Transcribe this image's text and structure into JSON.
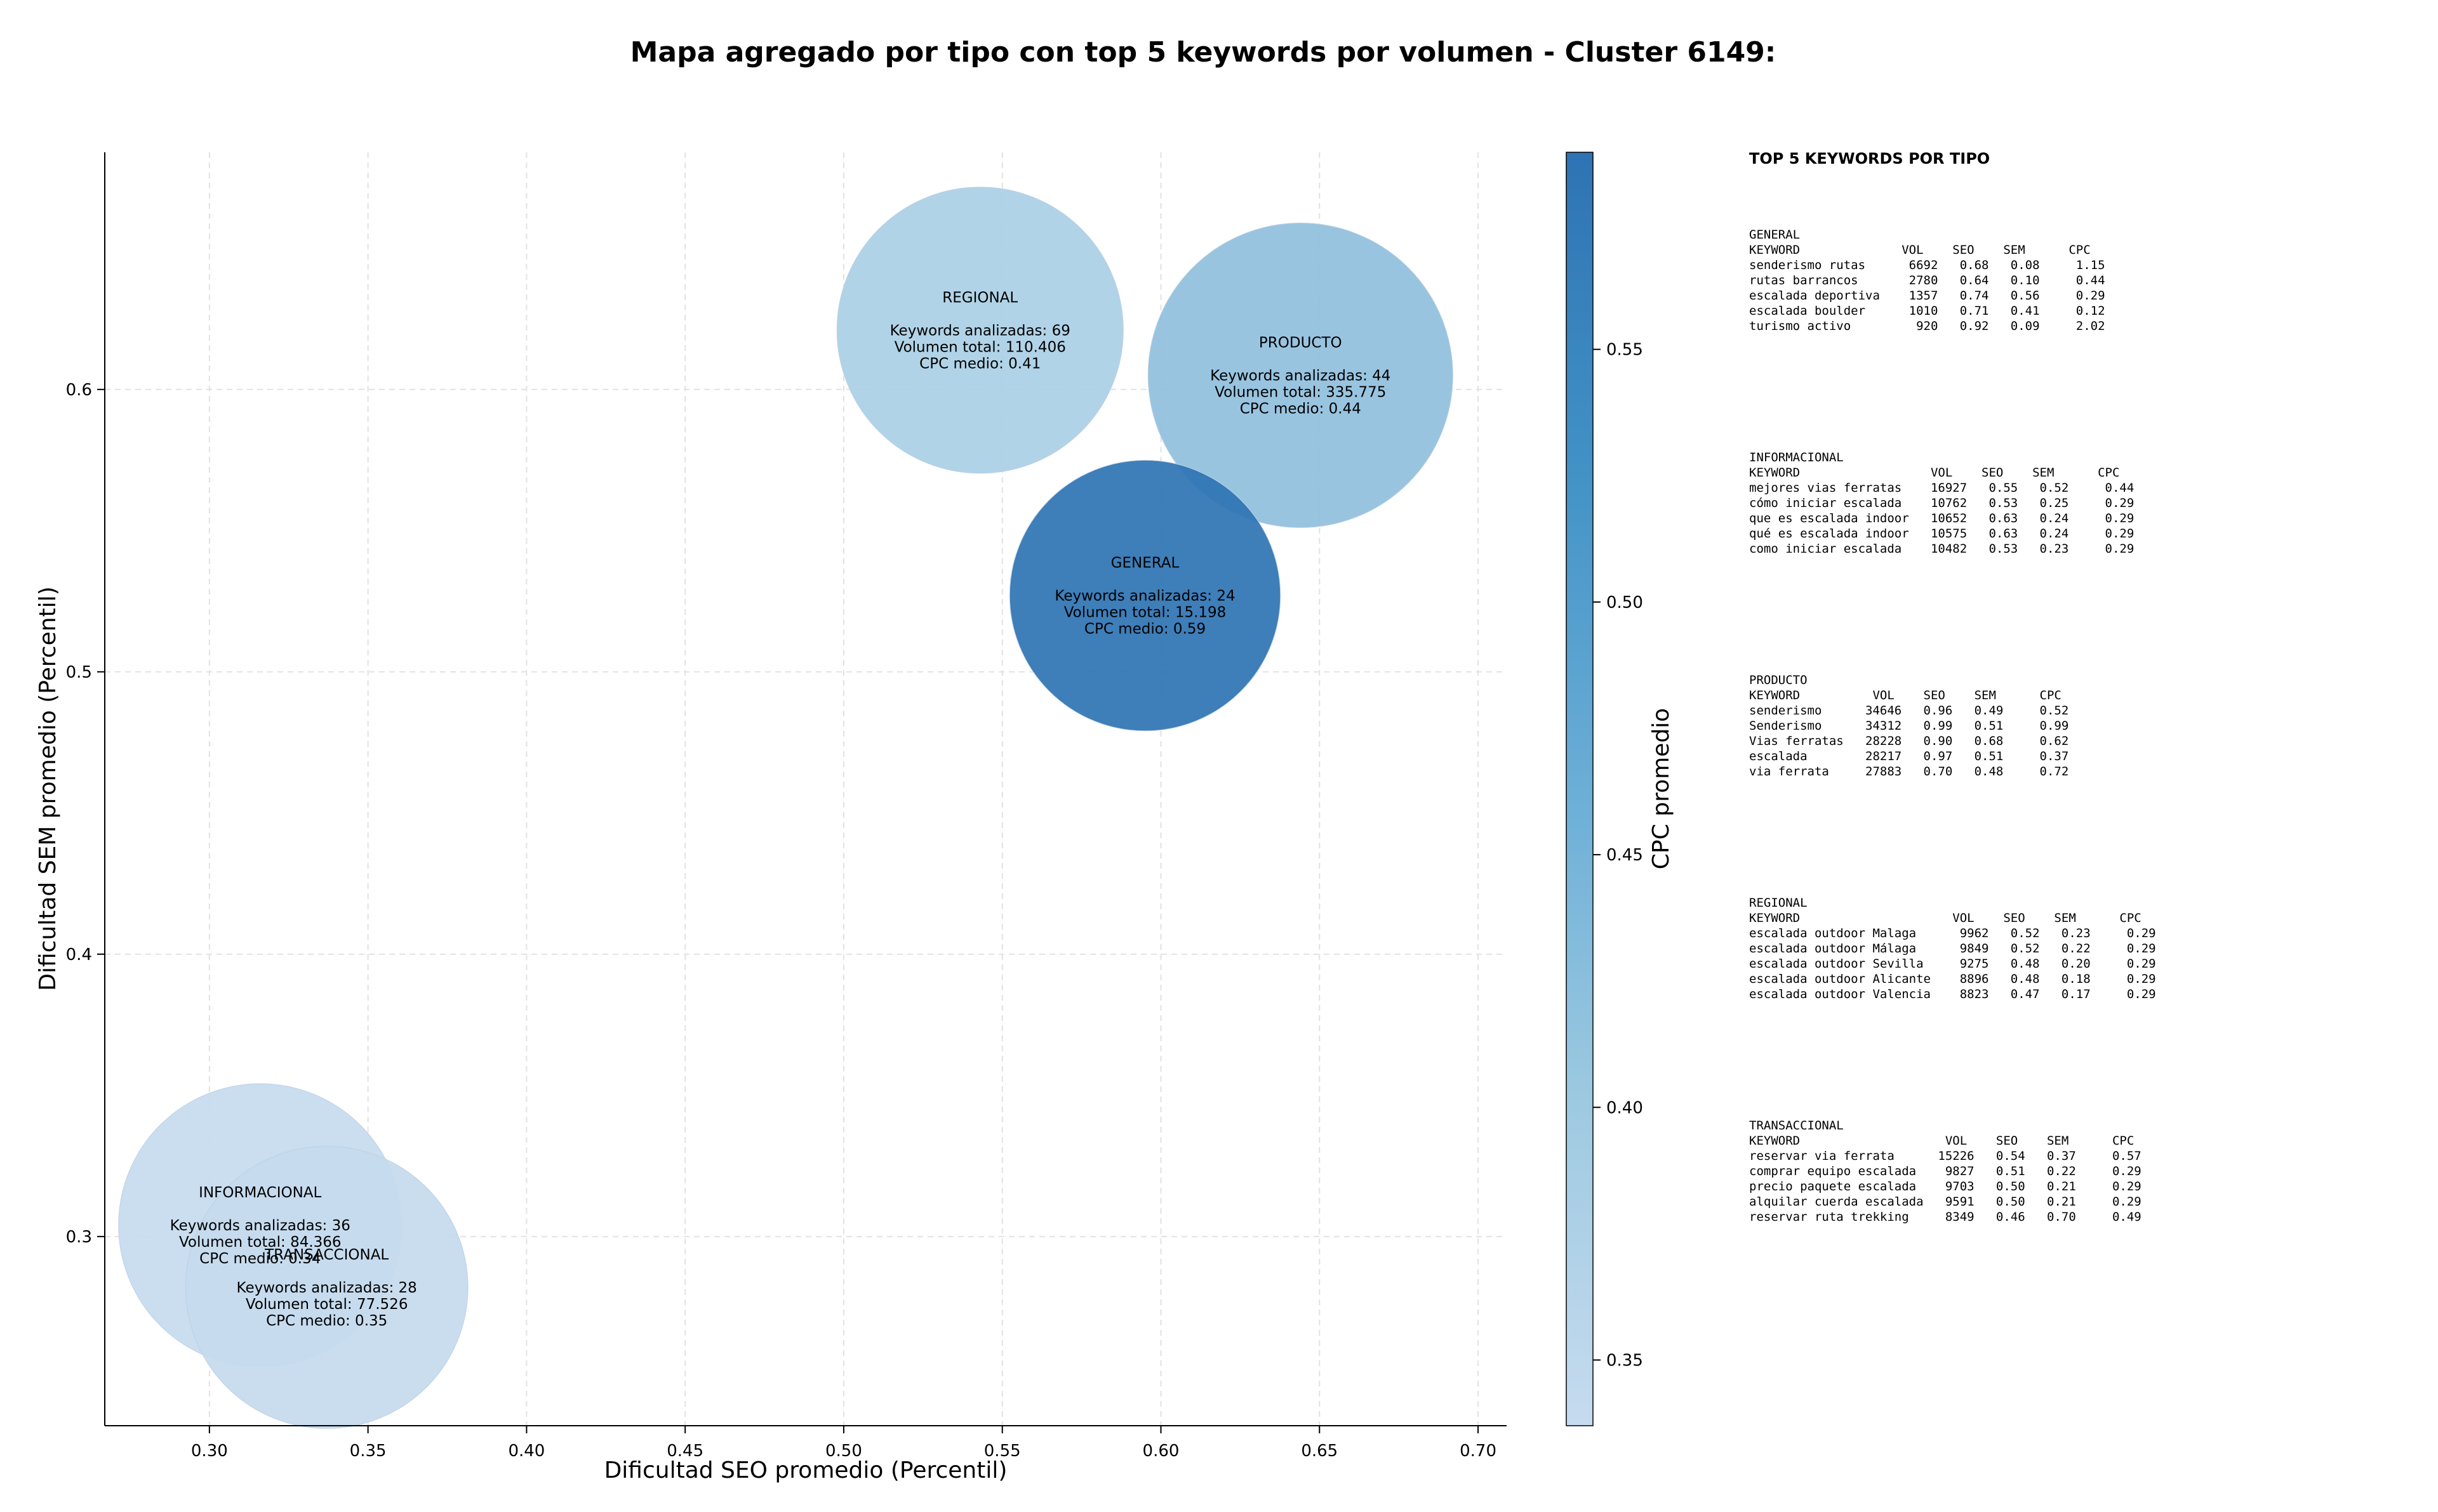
{
  "chart_data": {
    "type": "scatter",
    "title": "Mapa agregado por tipo con top 5 keywords por volumen - Cluster 6149:",
    "xlabel": "Dificultad SEO promedio (Percentil)",
    "ylabel": "Dificultad SEM promedio (Percentil)",
    "xlim": [
      0.267,
      0.709
    ],
    "ylim": [
      0.233,
      0.684
    ],
    "xticks": [
      0.3,
      0.35,
      0.4,
      0.45,
      0.5,
      0.55,
      0.6,
      0.65,
      0.7
    ],
    "xtick_labels": [
      "0.30",
      "0.35",
      "0.40",
      "0.45",
      "0.50",
      "0.55",
      "0.60",
      "0.65",
      "0.70"
    ],
    "yticks": [
      0.3,
      0.4,
      0.5,
      0.6
    ],
    "ytick_labels": [
      "0.3",
      "0.4",
      "0.5",
      "0.6"
    ],
    "grid": true,
    "size_encoding": "volumen total",
    "color_encoding": "CPC promedio",
    "colorbar": {
      "label": "CPC promedio",
      "range": [
        0.337,
        0.589
      ],
      "ticks": [
        0.35,
        0.4,
        0.45,
        0.5,
        0.55
      ],
      "tick_labels": [
        "0.35",
        "0.40",
        "0.45",
        "0.50",
        "0.55"
      ],
      "color_stops": [
        "#c6dbef",
        "#9ecae1",
        "#6baed6",
        "#4292c6",
        "#2e73b3"
      ]
    },
    "points": [
      {
        "name": "REGIONAL",
        "x": 0.543,
        "y": 0.621,
        "keywords": 69,
        "volume": 110406,
        "cpc": 0.41,
        "color": "#aacfe5",
        "lines": [
          "REGIONAL",
          "",
          "Keywords analizadas: 69",
          "Volumen total: 110.406",
          "CPC medio: 0.41"
        ]
      },
      {
        "name": "PRODUCTO",
        "x": 0.644,
        "y": 0.605,
        "keywords": 44,
        "volume": 335775,
        "cpc": 0.44,
        "color": "#8fbfdd",
        "lines": [
          "PRODUCTO",
          "",
          "Keywords analizadas: 44",
          "Volumen total: 335.775",
          "CPC medio: 0.44"
        ]
      },
      {
        "name": "GENERAL",
        "x": 0.595,
        "y": 0.527,
        "keywords": 24,
        "volume": 15198,
        "cpc": 0.59,
        "color": "#2e73b3",
        "lines": [
          "GENERAL",
          "",
          "Keywords analizadas: 24",
          "Volumen total: 15.198",
          "CPC medio: 0.59"
        ]
      },
      {
        "name": "INFORMACIONAL",
        "x": 0.316,
        "y": 0.304,
        "keywords": 36,
        "volume": 84366,
        "cpc": 0.34,
        "color": "#c6dbef",
        "lines": [
          "INFORMACIONAL",
          "",
          "Keywords analizadas: 36",
          "Volumen total: 84.366",
          "CPC medio: 0.34"
        ]
      },
      {
        "name": "TRANSACCIONAL",
        "x": 0.337,
        "y": 0.282,
        "keywords": 28,
        "volume": 77526,
        "cpc": 0.35,
        "color": "#c5daee",
        "lines": [
          "TRANSACCIONAL",
          "",
          "Keywords analizadas: 28",
          "Volumen total: 77.526",
          "CPC medio: 0.35"
        ]
      }
    ]
  },
  "side_panel": {
    "title": "TOP 5 KEYWORDS POR TIPO",
    "tables": [
      {
        "name": "GENERAL",
        "text": "GENERAL\nKEYWORD              VOL    SEO    SEM      CPC\nsenderismo rutas      6692   0.68   0.08     1.15\nrutas barrancos       2780   0.64   0.10     0.44\nescalada deportiva    1357   0.74   0.56     0.29\nescalada boulder      1010   0.71   0.41     0.12\nturismo activo         920   0.92   0.09     2.02"
      },
      {
        "name": "INFORMACIONAL",
        "text": "INFORMACIONAL\nKEYWORD                  VOL    SEO    SEM      CPC\nmejores vias ferratas    16927   0.55   0.52     0.44\ncómo iniciar escalada    10762   0.53   0.25     0.29\nque es escalada indoor   10652   0.63   0.24     0.29\nqué es escalada indoor   10575   0.63   0.24     0.29\ncomo iniciar escalada    10482   0.53   0.23     0.29"
      },
      {
        "name": "PRODUCTO",
        "text": "PRODUCTO\nKEYWORD          VOL    SEO    SEM      CPC\nsenderismo      34646   0.96   0.49     0.52\nSenderismo      34312   0.99   0.51     0.99\nVias ferratas   28228   0.90   0.68     0.62\nescalada        28217   0.97   0.51     0.37\nvia ferrata     27883   0.70   0.48     0.72"
      },
      {
        "name": "REGIONAL",
        "text": "REGIONAL\nKEYWORD                     VOL    SEO    SEM      CPC\nescalada outdoor Malaga      9962   0.52   0.23     0.29\nescalada outdoor Málaga      9849   0.52   0.22     0.29\nescalada outdoor Sevilla     9275   0.48   0.20     0.29\nescalada outdoor Alicante    8896   0.48   0.18     0.29\nescalada outdoor Valencia    8823   0.47   0.17     0.29"
      },
      {
        "name": "TRANSACCIONAL",
        "text": "TRANSACCIONAL\nKEYWORD                    VOL    SEO    SEM      CPC\nreservar via ferrata      15226   0.54   0.37     0.57\ncomprar equipo escalada    9827   0.51   0.22     0.29\nprecio paquete escalada    9703   0.50   0.21     0.29\nalquilar cuerda escalada   9591   0.50   0.21     0.29\nreservar ruta trekking     8349   0.46   0.70     0.49"
      }
    ]
  }
}
